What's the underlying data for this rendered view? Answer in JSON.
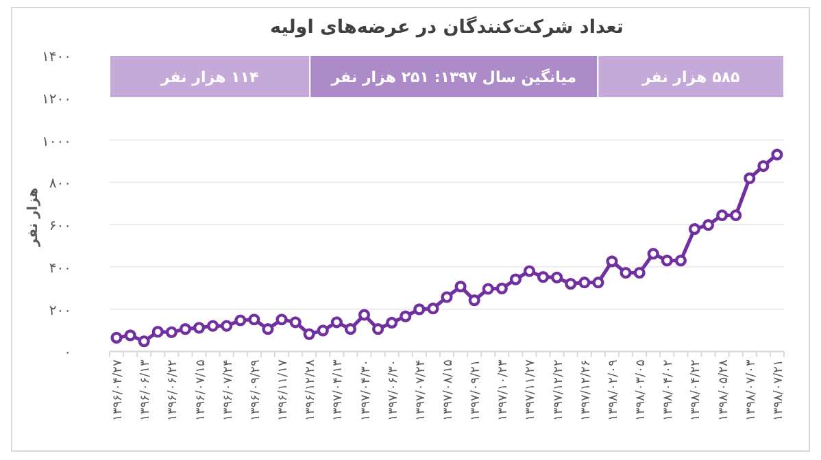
{
  "chart_data": {
    "type": "line",
    "title": "تعداد شرکت‌کنندگان در عرضه‌های اولیه",
    "ylabel": "هزار نفر",
    "categories": [
      "۱۳۹۶/۰۴/۲۷",
      null,
      "۱۳۹۶/۰۶/۱۳",
      null,
      "۱۳۹۶/۰۶/۲۲",
      null,
      "۱۳۹۶/۰۷/۱۵",
      null,
      "۱۳۹۶/۰۷/۲۴",
      null,
      "۱۳۹۶/۰۹/۲۹",
      null,
      "۱۳۹۶/۱۱/۱۷",
      null,
      "۱۳۹۶/۱۲/۲۸",
      null,
      "۱۳۹۷/۰۴/۱۳",
      null,
      "۱۳۹۷/۰۴/۳۰",
      null,
      "۱۳۹۷/۰۶/۳۰",
      null,
      "۱۳۹۷/۰۷/۲۴",
      null,
      "۱۳۹۷/۰۸/۱۵",
      null,
      "۱۳۹۷/۰۹/۲۱",
      null,
      "۱۳۹۷/۱۰/۲۳",
      null,
      "۱۳۹۷/۱۱/۲۷",
      null,
      "۱۳۹۷/۱۲/۲۲",
      null,
      "۱۳۹۷/۱۲/۲۶",
      null,
      "۱۳۹۸/۰۲/۰۹",
      null,
      "۱۳۹۸/۰۳/۰۵",
      null,
      "۱۳۹۸/۰۴/۰۲",
      null,
      "۱۳۹۸/۰۴/۲۲",
      null,
      "۱۳۹۸/۰۵/۲۸",
      null,
      "۱۳۹۸/۰۷/۰۳",
      null,
      "۱۳۹۸/۰۷/۲۱"
    ],
    "series": [
      {
        "color": "#7030a0",
        "values": [
          65,
          76,
          48,
          93,
          91,
          106,
          112,
          121,
          121,
          147,
          151,
          106,
          151,
          138,
          82,
          99,
          138,
          106,
          173,
          106,
          136,
          166,
          199,
          203,
          257,
          307,
          242,
          296,
          298,
          341,
          380,
          352,
          350,
          320,
          326,
          326,
          426,
          372,
          372,
          462,
          430,
          430,
          579,
          598,
          644,
          644,
          819,
          877,
          931
        ]
      }
    ],
    "ylim": [
      0,
      1400
    ],
    "yticks": [
      {
        "value": 0,
        "label": "۰"
      },
      {
        "value": 200,
        "label": "۲۰۰"
      },
      {
        "value": 400,
        "label": "۴۰۰"
      },
      {
        "value": 600,
        "label": "۶۰۰"
      },
      {
        "value": 800,
        "label": "۸۰۰"
      },
      {
        "value": 1000,
        "label": "۱۰۰۰"
      },
      {
        "value": 1200,
        "label": "۱۲۰۰"
      },
      {
        "value": 1400,
        "label": "۱۴۰۰"
      }
    ],
    "grid": "y",
    "marker": "circle",
    "line_style": "solid",
    "annotations": [
      "۱۱۴ هزار نفر",
      "میانگین سال ۱۳۹۷: ۲۵۱ هزار نفر",
      "۵۸۵ هزار نفر"
    ]
  }
}
